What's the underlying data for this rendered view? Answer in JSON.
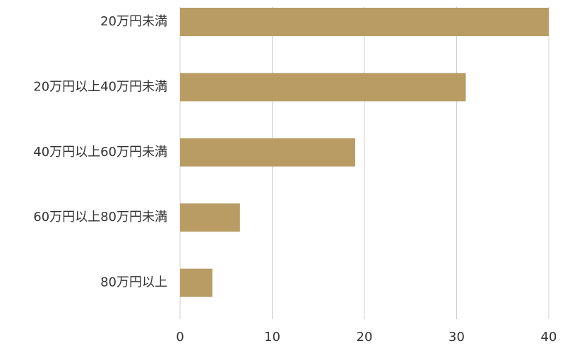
{
  "chart_data": {
    "type": "hbar",
    "categories": [
      "20万円未満",
      "20万円以上40万円未満",
      "40万円以上60万円未満",
      "60万円以上80万円未満",
      "80万円以上"
    ],
    "values": [
      40,
      31,
      19,
      6.5,
      3.5
    ],
    "color": "#b89c64",
    "xlim": [
      0,
      40
    ],
    "xticks": [
      0,
      10,
      20,
      30,
      40
    ],
    "grid": true
  }
}
